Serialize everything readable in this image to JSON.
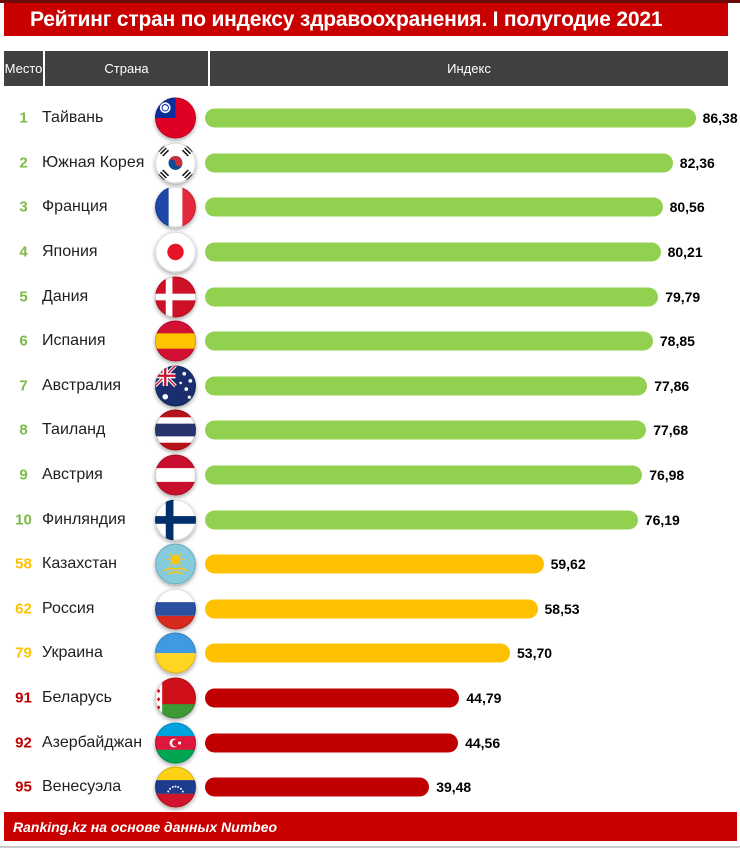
{
  "header": {
    "title": "Рейтинг стран по индексу здравоохранения. I полугодие 2021"
  },
  "table_header": {
    "place": "Место",
    "country": "Страна",
    "index": "Индекс"
  },
  "footer": {
    "source": "Ranking.kz на основе данных Numbeo"
  },
  "colors": {
    "title_bg": "#c80000",
    "table_header_bg": "#404040",
    "footer_bg": "#c80000",
    "bar_green": "#92D050",
    "bar_amber": "#FFC000",
    "bar_red": "#C00000",
    "rank_green": "#7DBA45",
    "rank_amber": "#FFC000",
    "rank_red": "#C00000"
  },
  "chart_data": {
    "type": "bar",
    "orientation": "horizontal",
    "title": "Рейтинг стран по индексу здравоохранения. I полугодие 2021",
    "source": "Ranking.kz на основе данных Numbeo",
    "value_axis_range": [
      0,
      100
    ],
    "columns": [
      "Место",
      "Страна",
      "Индекс"
    ],
    "rows": [
      {
        "rank": 1,
        "country": "Тайвань",
        "flag": "taiwan",
        "value": 86.38,
        "label": "86,38",
        "color_tier": "green"
      },
      {
        "rank": 2,
        "country": "Южная Корея",
        "flag": "south-korea",
        "value": 82.36,
        "label": "82,36",
        "color_tier": "green"
      },
      {
        "rank": 3,
        "country": "Франция",
        "flag": "france",
        "value": 80.56,
        "label": "80,56",
        "color_tier": "green"
      },
      {
        "rank": 4,
        "country": "Япония",
        "flag": "japan",
        "value": 80.21,
        "label": "80,21",
        "color_tier": "green"
      },
      {
        "rank": 5,
        "country": "Дания",
        "flag": "denmark",
        "value": 79.79,
        "label": "79,79",
        "color_tier": "green"
      },
      {
        "rank": 6,
        "country": "Испания",
        "flag": "spain",
        "value": 78.85,
        "label": "78,85",
        "color_tier": "green"
      },
      {
        "rank": 7,
        "country": "Австралия",
        "flag": "australia",
        "value": 77.86,
        "label": "77,86",
        "color_tier": "green"
      },
      {
        "rank": 8,
        "country": "Таиланд",
        "flag": "thailand",
        "value": 77.68,
        "label": "77,68",
        "color_tier": "green"
      },
      {
        "rank": 9,
        "country": "Австрия",
        "flag": "austria",
        "value": 76.98,
        "label": "76,98",
        "color_tier": "green"
      },
      {
        "rank": 10,
        "country": "Финляндия",
        "flag": "finland",
        "value": 76.19,
        "label": "76,19",
        "color_tier": "green"
      },
      {
        "rank": 58,
        "country": "Казахстан",
        "flag": "kazakhstan",
        "value": 59.62,
        "label": "59,62",
        "color_tier": "amber"
      },
      {
        "rank": 62,
        "country": "Россия",
        "flag": "russia",
        "value": 58.53,
        "label": "58,53",
        "color_tier": "amber"
      },
      {
        "rank": 79,
        "country": "Украина",
        "flag": "ukraine",
        "value": 53.7,
        "label": "53,70",
        "color_tier": "amber"
      },
      {
        "rank": 91,
        "country": "Беларусь",
        "flag": "belarus",
        "value": 44.79,
        "label": "44,79",
        "color_tier": "red"
      },
      {
        "rank": 92,
        "country": "Азербайджан",
        "flag": "azerbaijan",
        "value": 44.56,
        "label": "44,56",
        "color_tier": "red"
      },
      {
        "rank": 95,
        "country": "Венесуэла",
        "flag": "venezuela",
        "value": 39.48,
        "label": "39,48",
        "color_tier": "red"
      }
    ]
  }
}
